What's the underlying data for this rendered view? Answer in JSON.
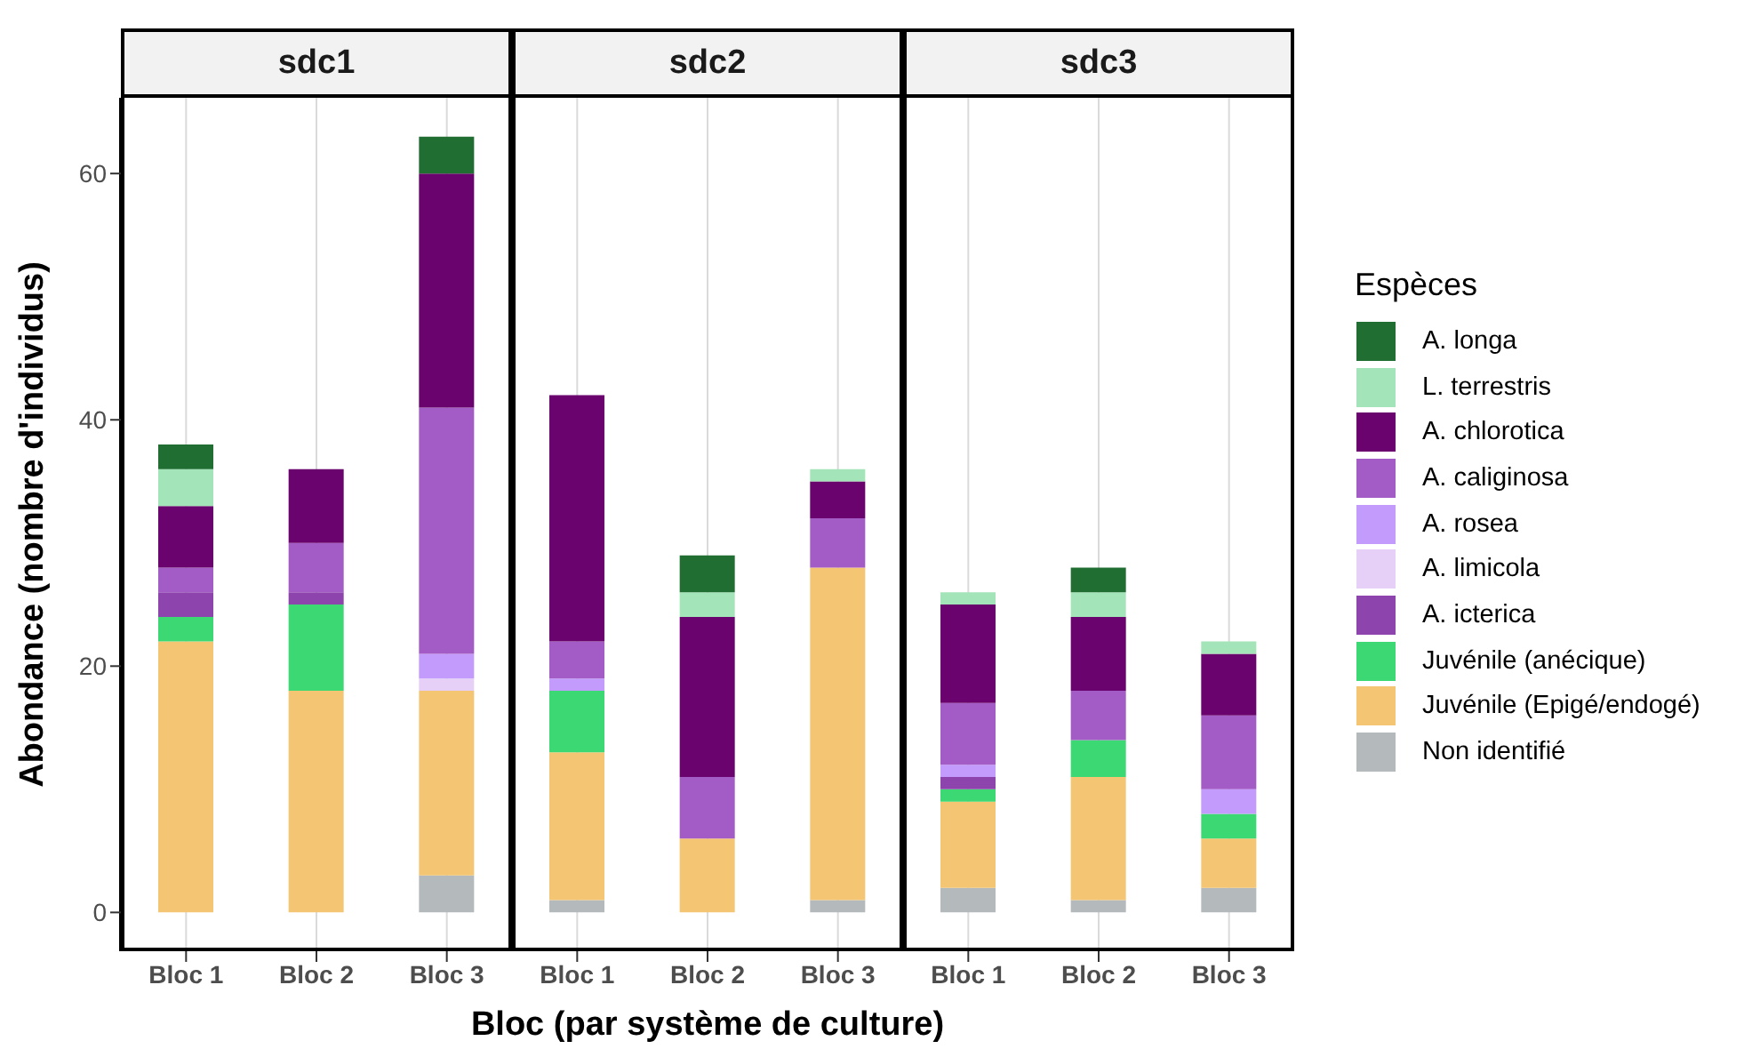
{
  "chart_data": [
    {
      "type": "bar",
      "title": "sdc1",
      "ylabel": "Abondance (nombre d'individus)",
      "stacked": true,
      "grid": "x",
      "categories": [
        "Bloc 1",
        "Bloc 2",
        "Bloc 3"
      ],
      "ylim": [
        -3.15,
        66.15
      ],
      "yticks": [
        0,
        20,
        40,
        60
      ],
      "series": [
        {
          "color": "#b4babb",
          "values": [
            0,
            0,
            3
          ]
        },
        {
          "color": "#f4c674",
          "values": [
            22,
            18,
            15
          ]
        },
        {
          "color": "#3cd873",
          "values": [
            2,
            7,
            0
          ]
        },
        {
          "color": "#8e44ad",
          "values": [
            2,
            1,
            0
          ]
        },
        {
          "color": "#e6d0f7",
          "values": [
            0,
            0,
            1
          ]
        },
        {
          "color": "#c39bfc",
          "values": [
            0,
            0,
            2
          ]
        },
        {
          "color": "#a35bc6",
          "values": [
            2,
            4,
            20
          ]
        },
        {
          "color": "#6a036d",
          "values": [
            5,
            6,
            19
          ]
        },
        {
          "color": "#a3e4b8",
          "values": [
            3,
            0,
            0
          ]
        },
        {
          "color": "#216e33",
          "values": [
            2,
            0,
            3
          ]
        }
      ]
    },
    {
      "type": "bar",
      "title": "sdc2",
      "xlabel": "Bloc (par système de culture)",
      "stacked": true,
      "grid": "x",
      "tick_labels": "x",
      "categories": [
        "Bloc 1",
        "Bloc 2",
        "Bloc 3"
      ],
      "ylim": [
        -3.15,
        66.15
      ],
      "yticks": [
        0,
        20,
        40,
        60
      ],
      "series": [
        {
          "color": "#b4babb",
          "values": [
            1,
            0,
            1
          ]
        },
        {
          "color": "#f4c674",
          "values": [
            12,
            6,
            27
          ]
        },
        {
          "color": "#3cd873",
          "values": [
            5,
            0,
            0
          ]
        },
        {
          "color": "#8e44ad",
          "values": [
            0,
            0,
            0
          ]
        },
        {
          "color": "#e6d0f7",
          "values": [
            0,
            0,
            0
          ]
        },
        {
          "color": "#c39bfc",
          "values": [
            1,
            0,
            0
          ]
        },
        {
          "color": "#a35bc6",
          "values": [
            3,
            5,
            4
          ]
        },
        {
          "color": "#6a036d",
          "values": [
            20,
            13,
            3
          ]
        },
        {
          "color": "#a3e4b8",
          "values": [
            0,
            2,
            1
          ]
        },
        {
          "color": "#216e33",
          "values": [
            0,
            3,
            0
          ]
        }
      ]
    },
    {
      "type": "bar",
      "title": "sdc3",
      "legend_title": "Espèces",
      "stacked": true,
      "grid": "x",
      "legend": "right",
      "tick_labels": "x",
      "categories": [
        "Bloc 1",
        "Bloc 2",
        "Bloc 3"
      ],
      "ylim": [
        -3.15,
        66.15
      ],
      "yticks": [
        0,
        20,
        40,
        60
      ],
      "series": [
        {
          "name": "Non identifié",
          "color": "#b4babb",
          "values": [
            2,
            1,
            2
          ]
        },
        {
          "name": "Juvénile (Epigé/endogé)",
          "color": "#f4c674",
          "values": [
            7,
            10,
            4
          ]
        },
        {
          "name": "Juvénile (anécique)",
          "color": "#3cd873",
          "values": [
            1,
            3,
            2
          ]
        },
        {
          "name": "A. icterica",
          "color": "#8e44ad",
          "values": [
            1,
            0,
            0
          ]
        },
        {
          "name": "A. limicola",
          "color": "#e6d0f7",
          "values": [
            0,
            0,
            0
          ]
        },
        {
          "name": "A. rosea",
          "color": "#c39bfc",
          "values": [
            1,
            0,
            2
          ]
        },
        {
          "name": "A. caliginosa",
          "color": "#a35bc6",
          "values": [
            5,
            4,
            6
          ]
        },
        {
          "name": "A. chlorotica",
          "color": "#6a036d",
          "values": [
            8,
            6,
            5
          ]
        },
        {
          "name": "L. terrestris",
          "color": "#a3e4b8",
          "values": [
            1,
            2,
            1
          ]
        },
        {
          "name": "A. longa",
          "color": "#216e33",
          "values": [
            0,
            2,
            0
          ]
        }
      ]
    }
  ]
}
